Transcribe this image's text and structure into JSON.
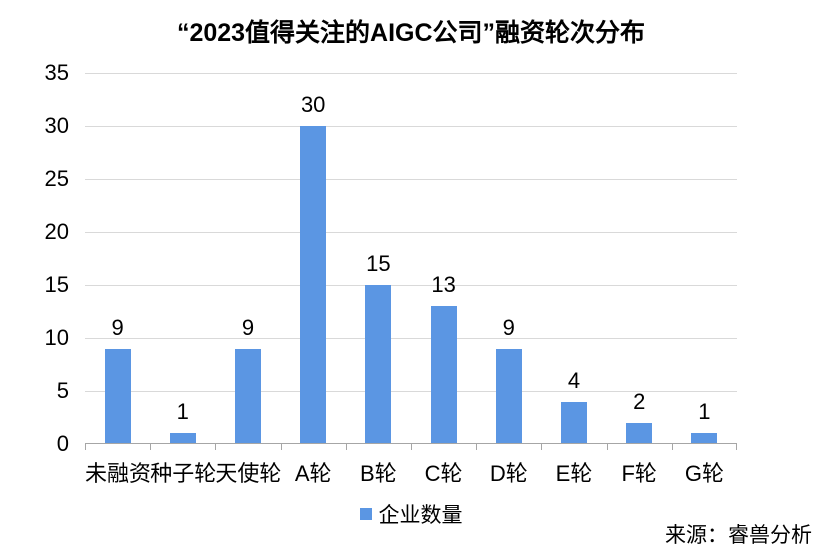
{
  "chart_data": {
    "type": "bar",
    "title": "“2023值得关注的AIGC公司”融资轮次分布",
    "categories": [
      "未融资",
      "种子轮",
      "天使轮",
      "A轮",
      "B轮",
      "C轮",
      "D轮",
      "E轮",
      "F轮",
      "G轮"
    ],
    "series": [
      {
        "name": "企业数量",
        "values": [
          9,
          1,
          9,
          30,
          15,
          13,
          9,
          4,
          2,
          1
        ]
      }
    ],
    "xlabel": "",
    "ylabel": "",
    "ylim": [
      0,
      35
    ],
    "yticks": [
      0,
      5,
      10,
      15,
      20,
      25,
      30,
      35
    ],
    "grid": true,
    "data_labels": true,
    "legend_position": "bottom"
  },
  "legend": {
    "label": "企业数量"
  },
  "source_note": "来源：睿兽分析",
  "colors": {
    "bar": "#5B96E3",
    "gridline": "#D9D9D9",
    "axis": "#A6A6A6",
    "text": "#000000"
  }
}
